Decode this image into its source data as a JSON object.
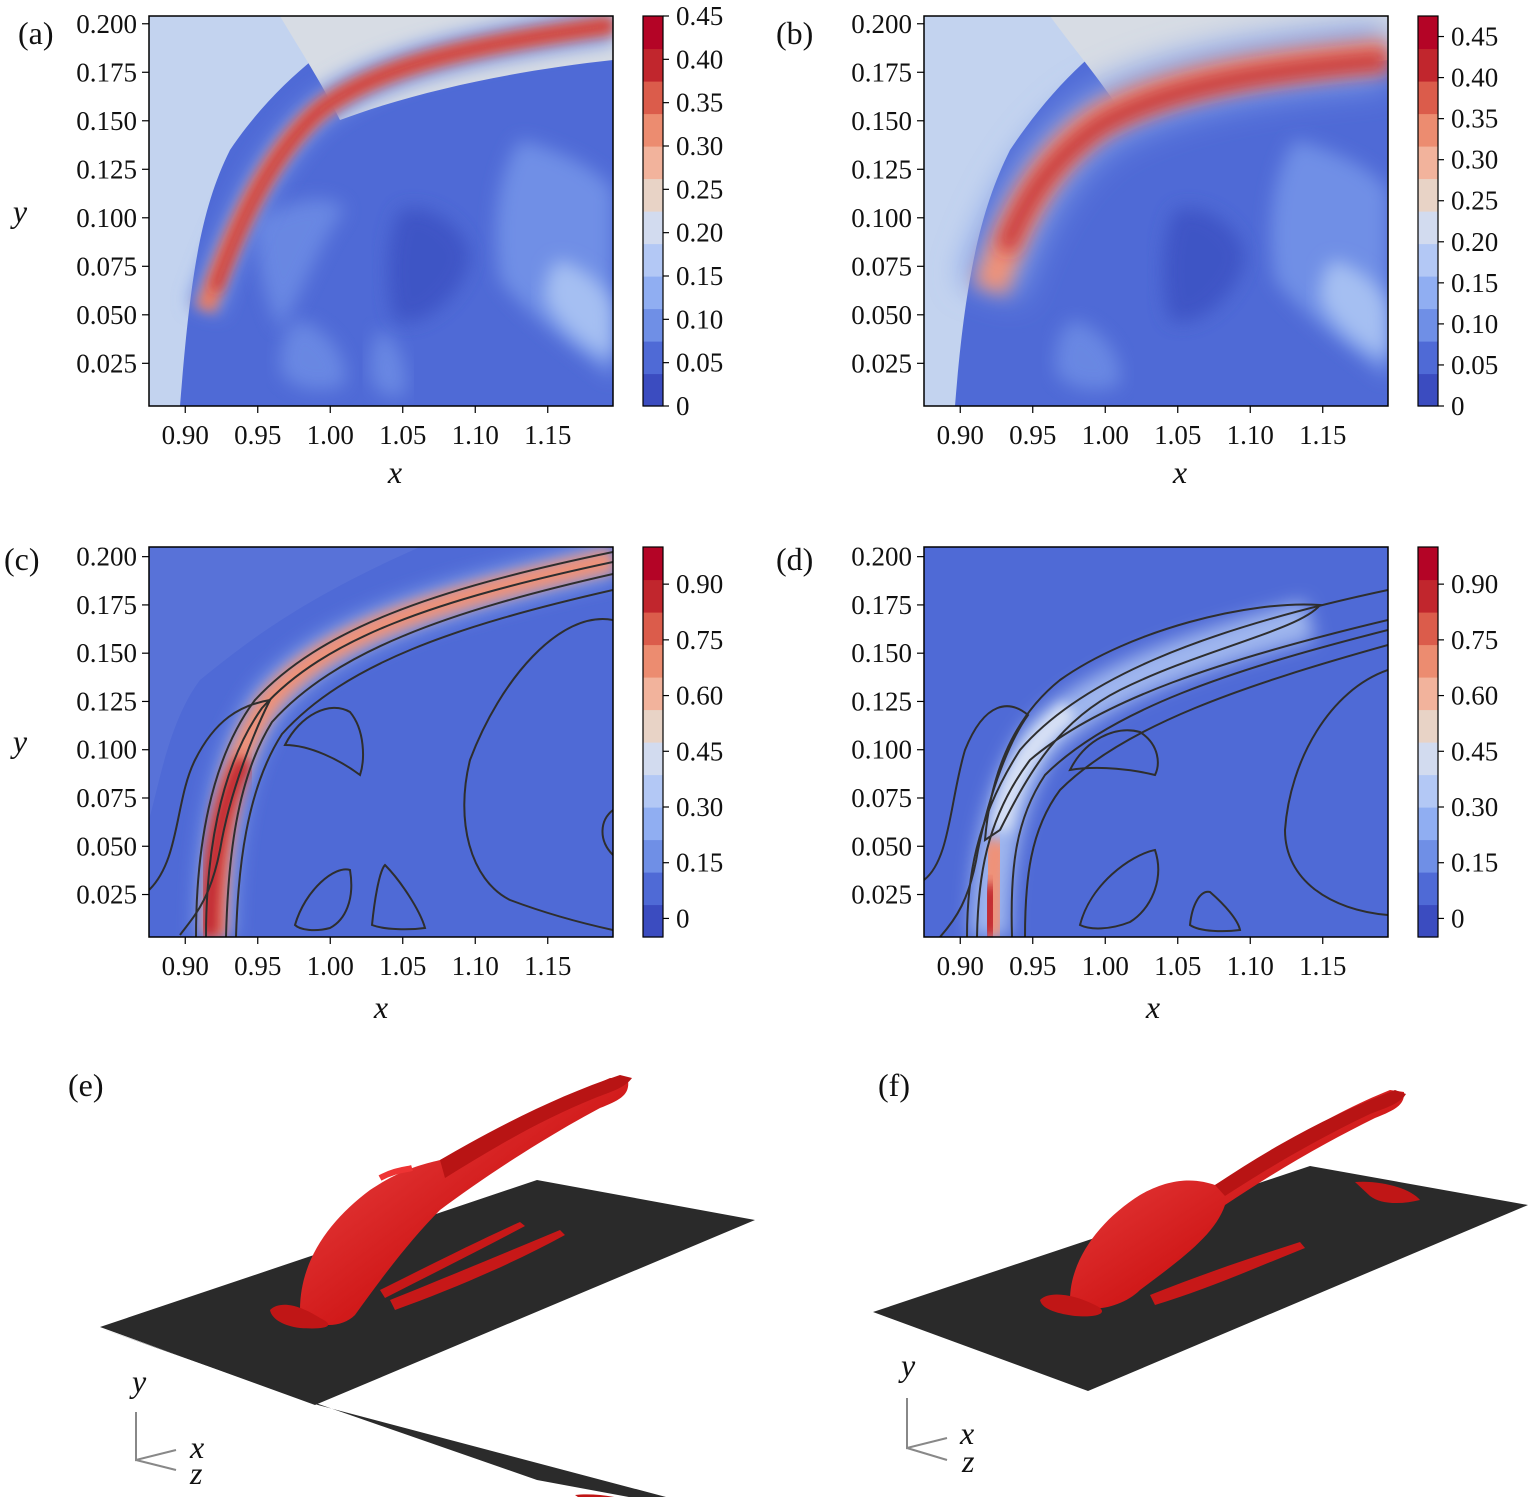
{
  "chart_data": [
    {
      "panel": "(a)",
      "type": "heatmap",
      "xlabel": "x",
      "ylabel": "y",
      "xticks": [
        "0.90",
        "0.95",
        "1.00",
        "1.05",
        "1.10",
        "1.15"
      ],
      "yticks": [
        "0.025",
        "0.050",
        "0.075",
        "0.100",
        "0.125",
        "0.150",
        "0.175",
        "0.200"
      ],
      "xlim": [
        0.875,
        1.195
      ],
      "ylim": [
        0.003,
        0.204
      ],
      "colorbar": {
        "ticks": [
          "0",
          "0.05",
          "0.10",
          "0.15",
          "0.20",
          "0.25",
          "0.30",
          "0.35",
          "0.40",
          "0.45"
        ],
        "range": [
          0,
          0.45
        ]
      },
      "contours": false
    },
    {
      "panel": "(b)",
      "type": "heatmap",
      "xlabel": "x",
      "ylabel": "",
      "xticks": [
        "0.90",
        "0.95",
        "1.00",
        "1.05",
        "1.10",
        "1.15"
      ],
      "yticks": [
        "0.025",
        "0.050",
        "0.075",
        "0.100",
        "0.125",
        "0.150",
        "0.175",
        "0.200"
      ],
      "xlim": [
        0.875,
        1.195
      ],
      "ylim": [
        0.003,
        0.204
      ],
      "colorbar": {
        "ticks": [
          "0",
          "0.05",
          "0.10",
          "0.15",
          "0.20",
          "0.25",
          "0.30",
          "0.35",
          "0.40",
          "0.45"
        ],
        "range": [
          0,
          0.475
        ]
      },
      "contours": false
    },
    {
      "panel": "(c)",
      "type": "heatmap",
      "xlabel": "x",
      "ylabel": "y",
      "xticks": [
        "0.90",
        "0.95",
        "1.00",
        "1.05",
        "1.10",
        "1.15"
      ],
      "yticks": [
        "0.025",
        "0.050",
        "0.075",
        "0.100",
        "0.125",
        "0.150",
        "0.175",
        "0.200"
      ],
      "xlim": [
        0.875,
        1.195
      ],
      "ylim": [
        0.003,
        0.205
      ],
      "colorbar": {
        "ticks": [
          "0",
          "0.15",
          "0.30",
          "0.45",
          "0.60",
          "0.75",
          "0.90"
        ],
        "range": [
          -0.05,
          1.0
        ]
      },
      "contours": true
    },
    {
      "panel": "(d)",
      "type": "heatmap",
      "xlabel": "x",
      "ylabel": "",
      "xticks": [
        "0.90",
        "0.95",
        "1.00",
        "1.05",
        "1.10",
        "1.15"
      ],
      "yticks": [
        "0.025",
        "0.050",
        "0.075",
        "0.100",
        "0.125",
        "0.150",
        "0.175",
        "0.200"
      ],
      "xlim": [
        0.875,
        1.195
      ],
      "ylim": [
        0.003,
        0.205
      ],
      "colorbar": {
        "ticks": [
          "0",
          "0.15",
          "0.30",
          "0.45",
          "0.60",
          "0.75",
          "0.90"
        ],
        "range": [
          -0.05,
          1.0
        ]
      },
      "contours": true
    }
  ],
  "iso_panels": [
    {
      "label": "(e)",
      "axes": {
        "y": "y",
        "x": "x",
        "z": "z"
      }
    },
    {
      "label": "(f)",
      "axes": {
        "y": "y",
        "x": "x",
        "z": "z"
      }
    }
  ],
  "colors": {
    "low": "#3b4cc0",
    "mid": "#dddcdc",
    "high": "#b40426",
    "plate": "#2b2b2b",
    "isosurface": "#d11a1a"
  }
}
